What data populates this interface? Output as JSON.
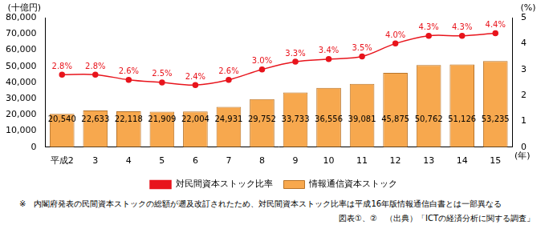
{
  "chart_data": {
    "type": "bar",
    "categories": [
      "平成2",
      "3",
      "4",
      "5",
      "6",
      "7",
      "8",
      "9",
      "10",
      "11",
      "12",
      "13",
      "14",
      "15"
    ],
    "series": [
      {
        "name": "情報通信資本ストック",
        "type": "bar",
        "color": "#f7a84e",
        "values": [
          20540,
          22633,
          22118,
          21909,
          22004,
          24931,
          29752,
          33733,
          36556,
          39081,
          45875,
          50762,
          51126,
          53235
        ],
        "value_labels": [
          "20,540",
          "22,633",
          "22,118",
          "21,909",
          "22,004",
          "24,931",
          "29,752",
          "33,733",
          "36,556",
          "39,081",
          "45,875",
          "50,762",
          "51,126",
          "53,235"
        ]
      },
      {
        "name": "対民間資本ストック比率",
        "type": "line",
        "color": "#e8141c",
        "marker": "circle",
        "axis": "y2",
        "values": [
          2.8,
          2.8,
          2.6,
          2.5,
          2.4,
          2.6,
          3.0,
          3.3,
          3.4,
          3.5,
          4.0,
          4.3,
          4.3,
          4.4
        ],
        "value_labels": [
          "2.8%",
          "2.8%",
          "2.6%",
          "2.5%",
          "2.4%",
          "2.6%",
          "3.0%",
          "3.3%",
          "3.4%",
          "3.5%",
          "4.0%",
          "4.3%",
          "4.3%",
          "4.4%"
        ]
      }
    ],
    "ylim": [
      0,
      80000
    ],
    "yticks": [
      0,
      {
        "value": 10000,
        "label": "10,000"
      },
      {
        "value": 20000,
        "label": "20,000"
      },
      {
        "value": 30000,
        "label": "30,000"
      },
      {
        "value": 40000,
        "label": "40,000"
      },
      {
        "value": 50000,
        "label": "50,000"
      },
      {
        "value": 60000,
        "label": "60,000"
      },
      {
        "value": 70000,
        "label": "70,000"
      },
      {
        "value": 80000,
        "label": "80,000"
      }
    ],
    "y2lim": [
      0,
      5
    ],
    "y2ticks": [
      0,
      1,
      2,
      3,
      4,
      5
    ],
    "y_label": "(十億円)",
    "y2_label": "(%)",
    "x_label": "(年)",
    "data_labels": true,
    "grid": false,
    "legend": "bottom",
    "annotations": [
      "※　内閣府発表の民間資本ストックの総額が遡及改訂されたため、対民間資本ストック比率は平成16年版情報通信白書とは一部異なる",
      "図表①、②　（出典）「ICTの経済分析に関する調査」"
    ]
  }
}
